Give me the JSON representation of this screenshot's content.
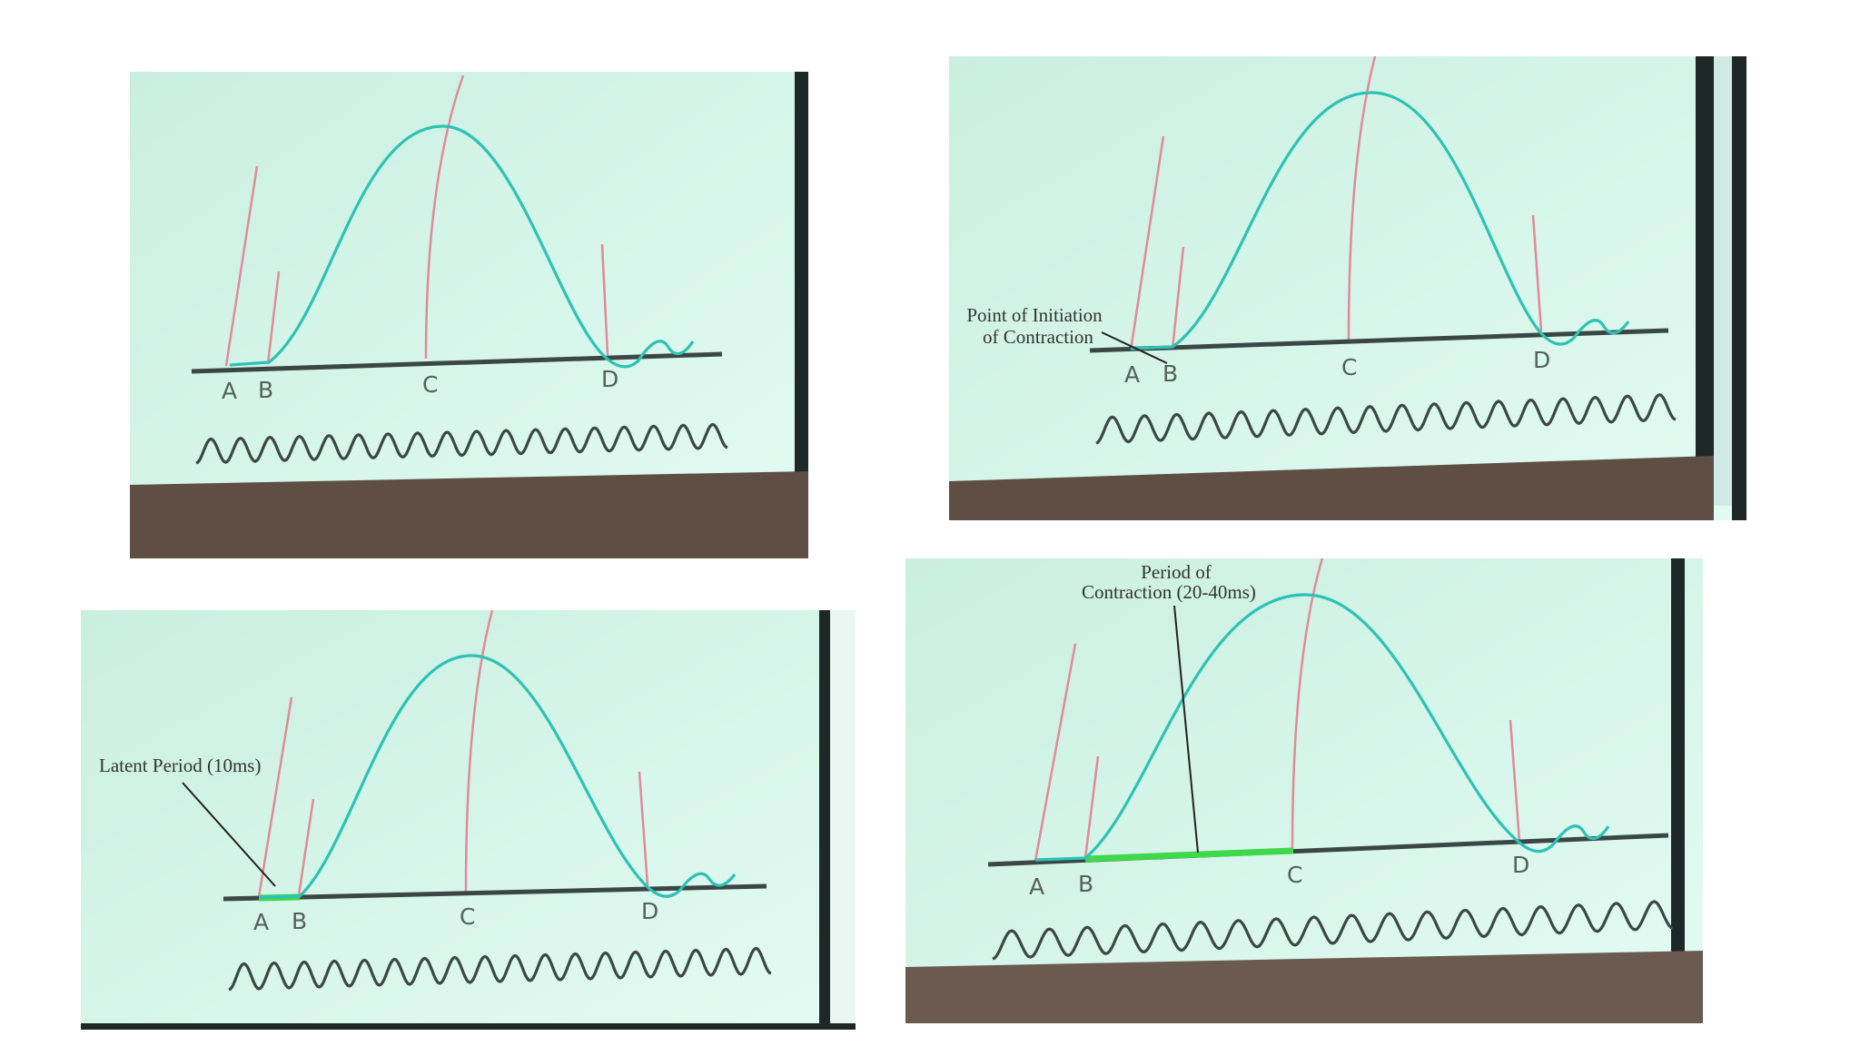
{
  "colors": {
    "screen": "#d2f3e6",
    "screen_edge": "#1e2826",
    "floor": "#5e4e44",
    "curve": "#2cc2b4",
    "marker": "#e08a9a",
    "baseline": "#3b4745",
    "timer": "#3b4745",
    "highlight": "#3fd84a",
    "label": "#555f5c",
    "annotation": "#333333"
  },
  "icons": {
    "twitch_curve": "bell-shaped-muscle-twitch-curve",
    "stimulus_marker": "vertical-pink-line",
    "time_marker": "sine-wave-timer"
  },
  "diagrams": [
    {
      "id": "panel-1",
      "point_labels": [
        "A",
        "B",
        "C",
        "D"
      ],
      "annotation_lines": []
    },
    {
      "id": "panel-2",
      "point_labels": [
        "A",
        "B",
        "C",
        "D"
      ],
      "annotation_lines": [
        "Point of Initiation",
        "of Contraction"
      ]
    },
    {
      "id": "panel-3",
      "point_labels": [
        "A",
        "B",
        "C",
        "D"
      ],
      "annotation_lines": [
        "Latent Period (10ms)"
      ],
      "highlighted_segment": [
        "A",
        "B"
      ]
    },
    {
      "id": "panel-4",
      "point_labels": [
        "A",
        "B",
        "C",
        "D"
      ],
      "annotation_lines": [
        "Period of",
        "Contraction (20-40ms)"
      ],
      "highlighted_segment": [
        "B",
        "C"
      ]
    }
  ]
}
